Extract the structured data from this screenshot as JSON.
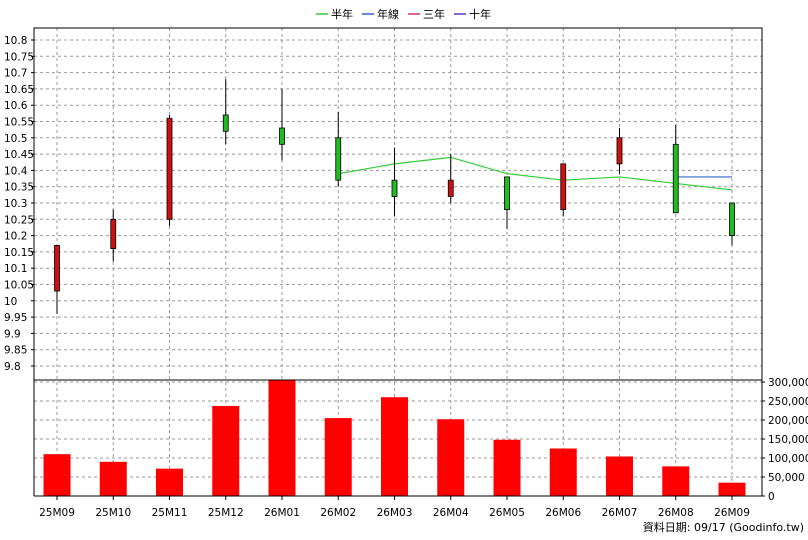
{
  "chart_data": {
    "type": "candlestick_with_volume",
    "categories": [
      "25M09",
      "25M10",
      "25M11",
      "25M12",
      "26M01",
      "26M02",
      "26M03",
      "26M04",
      "26M05",
      "26M06",
      "26M07",
      "26M08",
      "26M09"
    ],
    "legend": [
      {
        "label": "半年",
        "color": "#33cc33"
      },
      {
        "label": "年線",
        "color": "#3366cc"
      },
      {
        "label": "三年",
        "color": "#cc3366"
      },
      {
        "label": "十年",
        "color": "#6633cc"
      }
    ],
    "price_axis": {
      "ylim": [
        9.8,
        10.8
      ],
      "ticks": [
        "9.8",
        "9.85",
        "9.9",
        "9.95",
        "10",
        "10.05",
        "10.1",
        "10.15",
        "10.2",
        "10.25",
        "10.3",
        "10.35",
        "10.4",
        "10.45",
        "10.5",
        "10.55",
        "10.6",
        "10.65",
        "10.7",
        "10.75",
        "10.8"
      ]
    },
    "candles": [
      {
        "open": 10.03,
        "close": 10.17,
        "high": 10.17,
        "low": 9.96,
        "color": "red"
      },
      {
        "open": 10.16,
        "close": 10.25,
        "high": 10.28,
        "low": 10.12,
        "color": "red"
      },
      {
        "open": 10.25,
        "close": 10.56,
        "high": 10.57,
        "low": 10.23,
        "color": "red"
      },
      {
        "open": 10.57,
        "close": 10.52,
        "high": 10.68,
        "low": 10.48,
        "color": "green"
      },
      {
        "open": 10.53,
        "close": 10.48,
        "high": 10.65,
        "low": 10.43,
        "color": "green"
      },
      {
        "open": 10.5,
        "close": 10.37,
        "high": 10.58,
        "low": 10.35,
        "color": "green"
      },
      {
        "open": 10.37,
        "close": 10.32,
        "high": 10.47,
        "low": 10.26,
        "color": "green"
      },
      {
        "open": 10.32,
        "close": 10.37,
        "high": 10.45,
        "low": 10.3,
        "color": "red"
      },
      {
        "open": 10.38,
        "close": 10.28,
        "high": 10.38,
        "low": 10.22,
        "color": "green"
      },
      {
        "open": 10.28,
        "close": 10.42,
        "high": 10.42,
        "low": 10.26,
        "color": "red"
      },
      {
        "open": 10.42,
        "close": 10.5,
        "high": 10.53,
        "low": 10.39,
        "color": "red"
      },
      {
        "open": 10.48,
        "close": 10.27,
        "high": 10.54,
        "low": 10.27,
        "color": "green"
      },
      {
        "open": 10.3,
        "close": 10.2,
        "high": 10.3,
        "low": 10.17,
        "color": "green"
      }
    ],
    "ma_halfyear": {
      "start_index": 5,
      "values": [
        10.39,
        10.42,
        10.44,
        10.39,
        10.37,
        10.38,
        10.36,
        10.34
      ]
    },
    "ma_year": {
      "start_index": 11,
      "values": [
        10.38,
        10.38
      ]
    },
    "volume_axis": {
      "ylim": [
        0,
        300000
      ],
      "ticks": [
        "0",
        "50,000",
        "100,000",
        "150,000",
        "200,000",
        "250,000",
        "300,000"
      ]
    },
    "volumes": [
      110000,
      90000,
      72000,
      237000,
      305000,
      205000,
      260000,
      202000,
      148000,
      125000,
      104000,
      78000,
      35000
    ],
    "volume_color": "#ff0000",
    "footer": "資料日期: 09/17  (Goodinfo.tw)"
  }
}
